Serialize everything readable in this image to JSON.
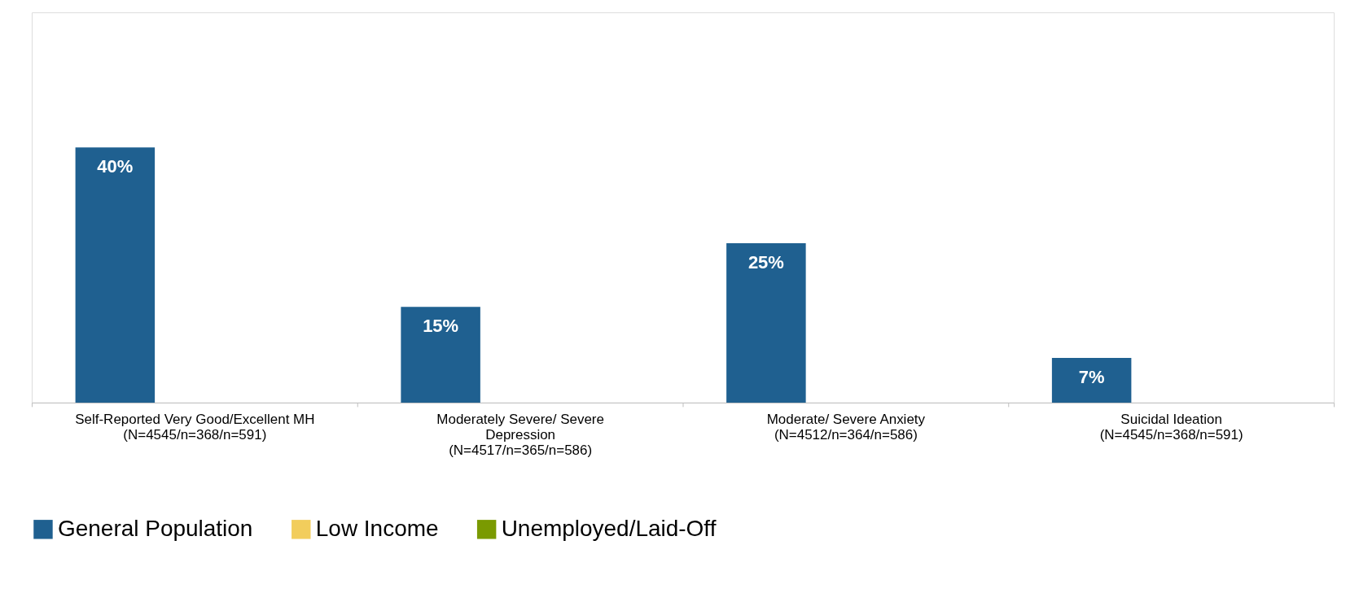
{
  "chart_data": {
    "type": "bar",
    "categories": [
      "Self-Reported Very Good/Excellent MH\n(N=4545/n=368/n=591)",
      "Moderately Severe/ Severe\nDepression\n(N=4517/n=365/n=586)",
      "Moderate/ Severe Anxiety\n(N=4512/n=364/n=586)",
      "Suicidal Ideation\n(N=4545/n=368/n=591)"
    ],
    "series": [
      {
        "name": "General Population",
        "color": "#1f6090",
        "values": [
          40,
          15,
          25,
          7
        ],
        "value_labels": [
          "40%",
          "15%",
          "25%",
          "7%"
        ]
      },
      {
        "name": "Low Income",
        "color": "#f2cd5c",
        "values": [
          null,
          null,
          null,
          null
        ]
      },
      {
        "name": "Unemployed/Laid-Off",
        "color": "#7a9a01",
        "values": [
          null,
          null,
          null,
          null
        ]
      }
    ],
    "legend": "bottom",
    "grid": false
  }
}
